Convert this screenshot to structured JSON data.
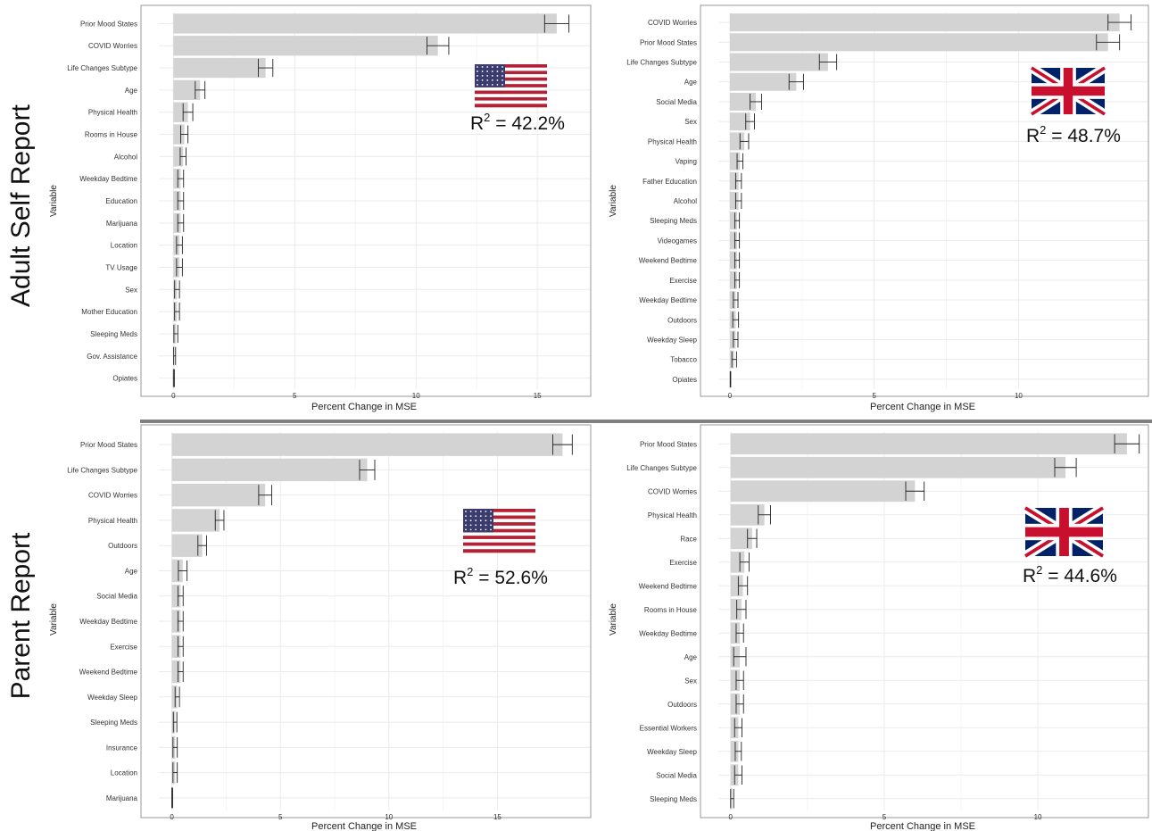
{
  "row_titles": [
    "Adult  Self Report",
    "Parent Report"
  ],
  "colors": {
    "bar": "#d3d3d3",
    "grid": "#ebebeb",
    "frame": "#999999",
    "divider": "#808080",
    "flag_red": "#b22234",
    "flag_blue": "#3c3b6e",
    "uk_blue": "#012169",
    "uk_red": "#c8102e"
  },
  "chart_data": [
    {
      "type": "bar",
      "orientation": "horizontal",
      "panel": "Adult Self Report - USA",
      "flag": "us-flag",
      "r2_label": "R",
      "r2_value": " = 42.2%",
      "xlabel": "Percent Change in MSE",
      "ylabel": "Variable",
      "xlim": [
        -0.6,
        17.2
      ],
      "xticks": [
        0,
        5,
        10,
        15
      ],
      "categories": [
        "Prior Mood States",
        "COVID Worries",
        "Life Changes Subtype",
        "Age",
        "Physical Health",
        "Rooms in House",
        "Alcohol",
        "Weekday Bedtime",
        "Education",
        "Marijuana",
        "Location",
        "TV Usage",
        "Sex",
        "Mother Education",
        "Sleeping Meds",
        "Gov. Assistance",
        "Opiates"
      ],
      "values": [
        15.8,
        10.9,
        3.8,
        1.1,
        0.6,
        0.45,
        0.4,
        0.3,
        0.3,
        0.3,
        0.25,
        0.25,
        0.15,
        0.15,
        0.1,
        0.05,
        0.02
      ],
      "error": [
        0.5,
        0.45,
        0.3,
        0.2,
        0.2,
        0.15,
        0.12,
        0.12,
        0.12,
        0.12,
        0.12,
        0.12,
        0.1,
        0.1,
        0.08,
        0.04,
        0.02
      ],
      "grid": true
    },
    {
      "type": "bar",
      "orientation": "horizontal",
      "panel": "Adult Self Report - UK",
      "flag": "uk-flag",
      "r2_label": "R",
      "r2_value": " = 48.7%",
      "xlabel": "Percent Change in MSE",
      "ylabel": "Variable",
      "xlim": [
        -0.4,
        14.5
      ],
      "xticks": [
        0,
        5,
        10
      ],
      "categories": [
        "COVID Worries",
        "Prior Mood States",
        "Life Changes Subtype",
        "Age",
        "Social Media",
        "Sex",
        "Physical Health",
        "Vaping",
        "Father Education",
        "Alcohol",
        "Sleeping Meds",
        "Videogames",
        "Weekend Bedtime",
        "Exercise",
        "Weekday Bedtime",
        "Outdoors",
        "Weekday Sleep",
        "Tobacco",
        "Opiates"
      ],
      "values": [
        13.5,
        13.1,
        3.4,
        2.3,
        0.9,
        0.7,
        0.5,
        0.35,
        0.3,
        0.3,
        0.25,
        0.25,
        0.25,
        0.25,
        0.2,
        0.2,
        0.2,
        0.15,
        0.02
      ],
      "error": [
        0.4,
        0.4,
        0.3,
        0.25,
        0.2,
        0.15,
        0.15,
        0.1,
        0.1,
        0.1,
        0.08,
        0.08,
        0.08,
        0.08,
        0.08,
        0.1,
        0.08,
        0.08,
        0.01
      ],
      "grid": true
    },
    {
      "type": "bar",
      "orientation": "horizontal",
      "panel": "Parent Report - USA",
      "flag": "us-flag",
      "r2_label": "R",
      "r2_value": " = 52.6%",
      "xlabel": "Percent Change in MSE",
      "ylabel": "Variable",
      "xlim": [
        -0.6,
        19.3
      ],
      "xticks": [
        0,
        5,
        10,
        15
      ],
      "categories": [
        "Prior Mood States",
        "Life Changes Subtype",
        "COVID Worries",
        "Physical Health",
        "Outdoors",
        "Age",
        "Social Media",
        "Weekday Bedtime",
        "Exercise",
        "Weekend Bedtime",
        "Weekday Sleep",
        "Sleeping Meds",
        "Insurance",
        "Location",
        "Marijuana"
      ],
      "values": [
        18.0,
        9.0,
        4.3,
        2.2,
        1.4,
        0.5,
        0.4,
        0.4,
        0.4,
        0.4,
        0.25,
        0.15,
        0.15,
        0.15,
        0.02
      ],
      "error": [
        0.45,
        0.35,
        0.3,
        0.2,
        0.2,
        0.2,
        0.12,
        0.12,
        0.12,
        0.12,
        0.1,
        0.08,
        0.1,
        0.1,
        0.02
      ],
      "grid": true
    },
    {
      "type": "bar",
      "orientation": "horizontal",
      "panel": "Parent Report - UK",
      "flag": "uk-flag",
      "r2_label": "R",
      "r2_value": " = 44.6%",
      "xlabel": "Percent Change in MSE",
      "ylabel": "Variable",
      "xlim": [
        -0.4,
        13.6
      ],
      "xticks": [
        0,
        5,
        10
      ],
      "categories": [
        "Prior Mood States",
        "Life Changes Subtype",
        "COVID Worries",
        "Physical Health",
        "Race",
        "Exercise",
        "Weekend Bedtime",
        "Rooms in House",
        "Weekday Bedtime",
        "Age",
        "Sex",
        "Outdoors",
        "Essential Workers",
        "Weekday Sleep",
        "Social Media",
        "Sleeping Meds"
      ],
      "values": [
        12.9,
        10.9,
        6.0,
        1.1,
        0.7,
        0.45,
        0.4,
        0.35,
        0.3,
        0.3,
        0.3,
        0.3,
        0.25,
        0.25,
        0.25,
        0.05
      ],
      "error": [
        0.4,
        0.35,
        0.3,
        0.2,
        0.15,
        0.15,
        0.15,
        0.15,
        0.12,
        0.2,
        0.12,
        0.12,
        0.12,
        0.1,
        0.12,
        0.05
      ],
      "grid": true
    }
  ]
}
